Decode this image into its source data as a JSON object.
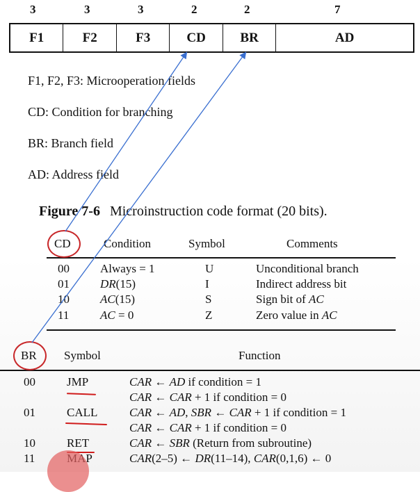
{
  "format": {
    "bit_counts": [
      "3",
      "3",
      "3",
      "2",
      "2",
      "7"
    ],
    "fields": [
      "F1",
      "F2",
      "F3",
      "CD",
      "BR",
      "AD"
    ]
  },
  "legend": [
    "F1, F2, F3: Microoperation fields",
    "CD: Condition for branching",
    "BR: Branch field",
    "AD: Address field"
  ],
  "caption": {
    "label": "Figure 7-6",
    "text": "Microinstruction code format (20 bits)."
  },
  "cd_table": {
    "headers": [
      "CD",
      "Condition",
      "Symbol",
      "Comments"
    ],
    "rows": [
      {
        "code": "00",
        "cond_pre": "Always = 1",
        "cond_var": "",
        "cond_post": "",
        "symbol": "U",
        "comment_pre": "Unconditional branch",
        "comment_var": ""
      },
      {
        "code": "01",
        "cond_pre": "",
        "cond_var": "DR",
        "cond_post": "(15)",
        "symbol": "I",
        "comment_pre": "Indirect address bit",
        "comment_var": ""
      },
      {
        "code": "10",
        "cond_pre": "",
        "cond_var": "AC",
        "cond_post": "(15)",
        "symbol": "S",
        "comment_pre": "Sign bit of ",
        "comment_var": "AC"
      },
      {
        "code": "11",
        "cond_pre": "",
        "cond_var": "AC",
        "cond_post": " = 0",
        "symbol": "Z",
        "comment_pre": "Zero value in ",
        "comment_var": "AC"
      }
    ]
  },
  "br_table": {
    "headers": [
      "BR",
      "Symbol",
      "Function"
    ],
    "rows": [
      {
        "code": "00",
        "symbol": "JMP",
        "lines": [
          [
            [
              "i",
              "CAR"
            ],
            [
              "r",
              " ← "
            ],
            [
              "i",
              "AD"
            ],
            [
              "r",
              " if condition = 1"
            ]
          ],
          [
            [
              "i",
              "CAR"
            ],
            [
              "r",
              " ← "
            ],
            [
              "i",
              "CAR"
            ],
            [
              "r",
              " + 1 if condition = 0"
            ]
          ]
        ]
      },
      {
        "code": "01",
        "symbol": "CALL",
        "lines": [
          [
            [
              "i",
              "CAR"
            ],
            [
              "r",
              " ← "
            ],
            [
              "i",
              "AD"
            ],
            [
              "r",
              ", "
            ],
            [
              "i",
              "SBR"
            ],
            [
              "r",
              " ← "
            ],
            [
              "i",
              "CAR"
            ],
            [
              "r",
              " + 1 if condition = 1"
            ]
          ],
          [
            [
              "i",
              "CAR"
            ],
            [
              "r",
              " ← "
            ],
            [
              "i",
              "CAR"
            ],
            [
              "r",
              " + 1 if condition = 0"
            ]
          ]
        ]
      },
      {
        "code": "10",
        "symbol": "RET",
        "lines": [
          [
            [
              "i",
              "CAR"
            ],
            [
              "r",
              " ← "
            ],
            [
              "i",
              "SBR"
            ],
            [
              "r",
              " (Return from subroutine)"
            ]
          ]
        ]
      },
      {
        "code": "11",
        "symbol": "MAP",
        "lines": [
          [
            [
              "i",
              "CAR"
            ],
            [
              "r",
              "(2–5) ← "
            ],
            [
              "i",
              "DR"
            ],
            [
              "r",
              "(11–14), "
            ],
            [
              "i",
              "CAR"
            ],
            [
              "r",
              "(0,1,6) ← 0"
            ]
          ]
        ]
      }
    ]
  },
  "annotation_color": "#c8282a",
  "arrow_color": "#3a6fd0"
}
